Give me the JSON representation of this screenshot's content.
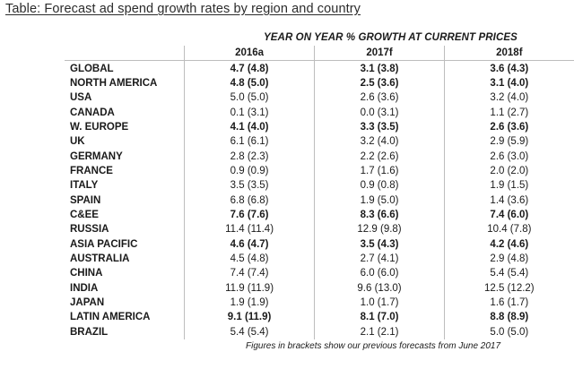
{
  "title": "Table: Forecast ad spend growth rates by region and country",
  "super_header": "YEAR ON YEAR % GROWTH AT CURRENT PRICES",
  "columns": [
    "2016a",
    "2017f",
    "2018f"
  ],
  "rows": [
    {
      "label": "GLOBAL",
      "bold": true,
      "values": [
        "4.7 (4.8)",
        "3.1 (3.8)",
        "3.6 (4.3)"
      ]
    },
    {
      "label": "NORTH AMERICA",
      "bold": true,
      "values": [
        "4.8 (5.0)",
        "2.5 (3.6)",
        "3.1 (4.0)"
      ]
    },
    {
      "label": "USA",
      "bold": false,
      "values": [
        "5.0 (5.0)",
        "2.6 (3.6)",
        "3.2 (4.0)"
      ]
    },
    {
      "label": "CANADA",
      "bold": false,
      "values": [
        "0.1 (3.1)",
        "0.0 (3.1)",
        "1.1 (2.7)"
      ]
    },
    {
      "label": "W. EUROPE",
      "bold": true,
      "values": [
        "4.1 (4.0)",
        "3.3 (3.5)",
        "2.6 (3.6)"
      ]
    },
    {
      "label": "UK",
      "bold": false,
      "values": [
        "6.1 (6.1)",
        "3.2 (4.0)",
        "2.9 (5.9)"
      ]
    },
    {
      "label": "GERMANY",
      "bold": false,
      "values": [
        "2.8 (2.3)",
        "2.2 (2.6)",
        "2.6 (3.0)"
      ]
    },
    {
      "label": "FRANCE",
      "bold": false,
      "values": [
        "0.9 (0.9)",
        "1.7 (1.6)",
        "2.0 (2.0)"
      ]
    },
    {
      "label": "ITALY",
      "bold": false,
      "values": [
        "3.5 (3.5)",
        "0.9 (0.8)",
        "1.9 (1.5)"
      ]
    },
    {
      "label": "SPAIN",
      "bold": false,
      "values": [
        "6.8 (6.8)",
        "1.9 (5.0)",
        "1.4 (3.6)"
      ]
    },
    {
      "label": "C&EE",
      "bold": true,
      "values": [
        "7.6 (7.6)",
        "8.3 (6.6)",
        "7.4 (6.0)"
      ]
    },
    {
      "label": "RUSSIA",
      "bold": false,
      "values": [
        "11.4 (11.4)",
        "12.9 (9.8)",
        "10.4 (7.8)"
      ]
    },
    {
      "label": "ASIA PACIFIC",
      "bold": true,
      "values": [
        "4.6 (4.7)",
        "3.5 (4.3)",
        "4.2 (4.6)"
      ]
    },
    {
      "label": "AUSTRALIA",
      "bold": false,
      "values": [
        "4.5 (4.8)",
        "2.7 (4.1)",
        "2.9 (4.8)"
      ]
    },
    {
      "label": "CHINA",
      "bold": false,
      "values": [
        "7.4 (7.4)",
        "6.0 (6.0)",
        "5.4 (5.4)"
      ]
    },
    {
      "label": "INDIA",
      "bold": false,
      "values": [
        "11.9 (11.9)",
        "9.6 (13.0)",
        "12.5 (12.2)"
      ]
    },
    {
      "label": "JAPAN",
      "bold": false,
      "values": [
        "1.9 (1.9)",
        "1.0 (1.7)",
        "1.6 (1.7)"
      ]
    },
    {
      "label": "LATIN AMERICA",
      "bold": true,
      "values": [
        "9.1 (11.9)",
        "8.1 (7.0)",
        "8.8 (8.9)"
      ]
    },
    {
      "label": "BRAZIL",
      "bold": false,
      "values": [
        "5.4 (5.4)",
        "2.1 (2.1)",
        "5.0 (5.0)"
      ]
    }
  ],
  "footnote": "Figures in brackets show our previous forecasts from June 2017"
}
